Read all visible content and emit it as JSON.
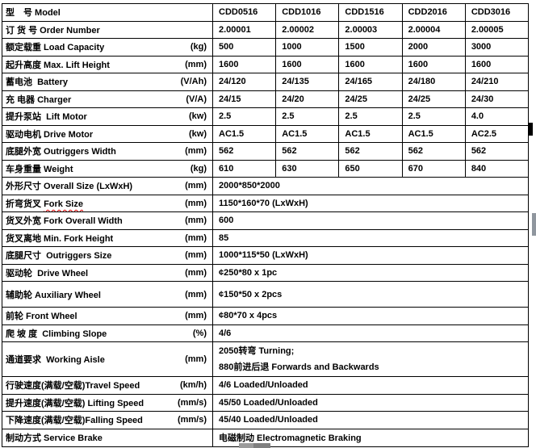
{
  "colors": {
    "border": "#000000",
    "text": "#000000",
    "spellcheck_underline": "#dd0000",
    "scrollbar_gray": "#8f969e"
  },
  "table": {
    "models": [
      "CDD0516",
      "CDD1016",
      "CDD1516",
      "CDD2016",
      "CDD3016"
    ],
    "rows": [
      {
        "label": "型　号 Model",
        "unit": "",
        "values": [
          "CDD0516",
          "CDD1016",
          "CDD1516",
          "CDD2016",
          "CDD3016"
        ]
      },
      {
        "label": "订 货 号 Order Number",
        "unit": "",
        "values": [
          "2.00001",
          "2.00002",
          "2.00003",
          "2.00004",
          "2.00005"
        ]
      },
      {
        "label": "额定载重 Load Capacity",
        "unit": "(kg)",
        "values": [
          "500",
          "1000",
          "1500",
          "2000",
          "3000"
        ]
      },
      {
        "label": "起升高度 Max. Lift Height",
        "unit": "(mm)",
        "values": [
          "1600",
          "1600",
          "1600",
          "1600",
          "1600"
        ]
      },
      {
        "label": "蓄电池  Battery",
        "unit": "(V/Ah)",
        "values": [
          "24/120",
          "24/135",
          "24/165",
          "24/180",
          "24/210"
        ]
      },
      {
        "label": "充 电器 Charger",
        "unit": "(V/A)",
        "values": [
          "24/15",
          "24/20",
          "24/25",
          "24/25",
          "24/30"
        ]
      },
      {
        "label": "提升泵站  Lift Motor",
        "unit": "(kw)",
        "values": [
          "2.5",
          "2.5",
          "2.5",
          "2.5",
          "4.0"
        ]
      },
      {
        "label": "驱动电机 Drive Motor",
        "unit": "(kw)",
        "values": [
          "AC1.5",
          "AC1.5",
          "AC1.5",
          "AC1.5",
          "AC2.5"
        ]
      },
      {
        "label": "底腿外宽 Outriggers Width",
        "unit": "(mm)",
        "values": [
          "562",
          "562",
          "562",
          "562",
          "562"
        ]
      },
      {
        "label": "车身重量 Weight",
        "unit": "(kg)",
        "values": [
          "610",
          "630",
          "650",
          "670",
          "840"
        ]
      },
      {
        "label": "外形尺寸 Overall Size (LxWxH)",
        "unit": "(mm)",
        "merged": "2000*850*2000"
      },
      {
        "label": "折弯货叉 ",
        "label_flagged": "Fork Size",
        "unit": "(mm)",
        "merged": "1150*160*70 (LxWxH)"
      },
      {
        "label": "货叉外宽 Fork Overall Width",
        "unit": "(mm)",
        "merged": "600"
      },
      {
        "label": "货叉离地 Min. Fork Height",
        "unit": "(mm)",
        "merged": "85"
      },
      {
        "label": "底腿尺寸  Outriggers Size",
        "unit": "(mm)",
        "merged": "1000*115*50 (LxWxH)"
      },
      {
        "label": "驱动轮  Drive Wheel",
        "unit": "(mm)",
        "merged": "¢250*80 x 1pc"
      },
      {
        "label": "辅助轮 Auxiliary Wheel",
        "unit": "(mm)",
        "merged": "¢150*50 x 2pcs"
      },
      {
        "label": "前轮 Front Wheel",
        "unit": "(mm)",
        "merged": "¢80*70 x 4pcs"
      },
      {
        "label": "爬 坡 度  Climbing Slope",
        "unit": "(%)",
        "merged": "4/6"
      },
      {
        "label": "通道要求  Working Aisle",
        "unit": "(mm)",
        "merged_lines": [
          "2050转弯 Turning;",
          "880前进后退 Forwards and Backwards"
        ]
      },
      {
        "label": "行驶速度(满载/空载)Travel Speed",
        "unit": "(km/h)",
        "merged": "4/6 Loaded/Unloaded"
      },
      {
        "label": "提升速度(满载/空载) Lifting Speed",
        "unit": "(mm/s)",
        "merged": "45/50 Loaded/Unloaded"
      },
      {
        "label": "下降速度(满载/空载)Falling Speed",
        "unit": "(mm/s)",
        "merged": "45/40 Loaded/Unloaded"
      },
      {
        "label": "制动方式 Service Brake",
        "unit": "",
        "merged": "电磁制动 Electromagnetic Braking"
      }
    ]
  }
}
